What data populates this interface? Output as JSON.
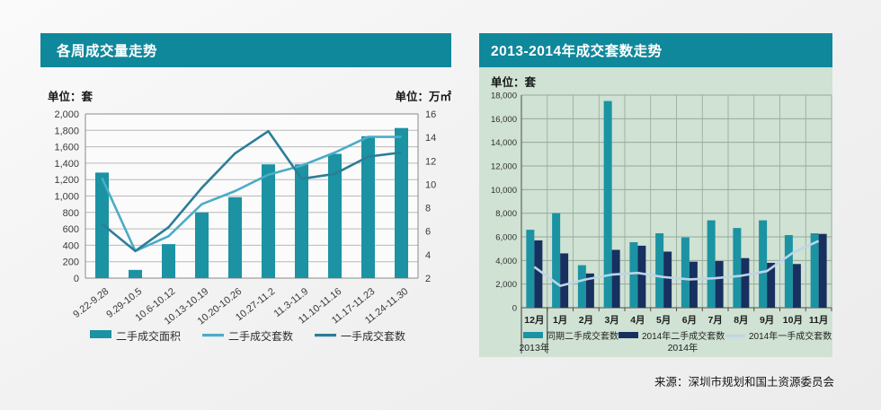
{
  "source": "来源：深圳市规划和国土资源委员会",
  "colors": {
    "header_teal": "#10889b",
    "teal_bar": "#1b93a3",
    "light_line": "#4bacc6",
    "dark_line": "#2b7e97",
    "navy_bar": "#173060",
    "pale_line": "#bcd5e8",
    "green_panel": "#cfe2d3",
    "left_plot_fill": "#fbfbfb",
    "left_grid": "#b9b9b9",
    "left_border": "#8a8a8a",
    "right_grid": "#96a89a",
    "right_axis_line": "#4c4c4c"
  },
  "chart_data": [
    {
      "type": "bar",
      "subtype": "combo-bar-line-dual-axis",
      "title": "各周成交量走势",
      "unit_left": "单位：套",
      "unit_right": "单位：万㎡",
      "categories": [
        "9.22-9.28",
        "9.29-10.5",
        "10.6-10.12",
        "10.13-10.19",
        "10.20-10.26",
        "10.27-11.2",
        "11.3-11.9",
        "11.10-11.16",
        "11.17-11.23",
        "11.24-11.30"
      ],
      "series": [
        {
          "name": "二手成交面积",
          "kind": "bar",
          "axis": "right",
          "values": [
            11.0,
            2.7,
            4.9,
            7.6,
            8.9,
            11.7,
            11.7,
            12.6,
            14.1,
            14.8
          ]
        },
        {
          "name": "二手成交套数",
          "kind": "line",
          "axis": "left",
          "values": [
            1220,
            330,
            510,
            900,
            1060,
            1260,
            1370,
            1530,
            1720,
            1720
          ]
        },
        {
          "name": "一手成交套数",
          "kind": "line",
          "axis": "left",
          "values": [
            660,
            330,
            620,
            1100,
            1520,
            1790,
            1210,
            1270,
            1480,
            1530
          ]
        }
      ],
      "left_axis": {
        "min": 0,
        "max": 2000,
        "step": 200
      },
      "right_axis": {
        "min": 2,
        "max": 16,
        "step": 2
      },
      "grid": true,
      "legend_position": "bottom"
    },
    {
      "type": "bar",
      "subtype": "grouped-bar-with-line",
      "title": "2013-2014年成交套数走势",
      "unit": "单位：套",
      "categories": [
        "12月",
        "1月",
        "2月",
        "3月",
        "4月",
        "5月",
        "6月",
        "7月",
        "8月",
        "9月",
        "10月",
        "11月"
      ],
      "series": [
        {
          "name": "同期二手成交套数",
          "kind": "bar",
          "values": [
            6600,
            8000,
            3600,
            17500,
            5550,
            6300,
            5950,
            7400,
            6750,
            7400,
            6150,
            6300
          ]
        },
        {
          "name": "2014年二手成交套数",
          "kind": "bar",
          "values": [
            5700,
            4600,
            2900,
            4900,
            5250,
            4750,
            3900,
            3950,
            4200,
            3800,
            3700,
            6250
          ]
        },
        {
          "name": "2014年一手成交套数",
          "kind": "line",
          "values": [
            3450,
            1850,
            2400,
            2800,
            2950,
            2600,
            2400,
            2500,
            2700,
            3100,
            4650,
            5650
          ]
        }
      ],
      "y_axis": {
        "min": 0,
        "max": 18000,
        "step": 2000
      },
      "year_labels": [
        "2013年",
        "2014年"
      ],
      "grid": true,
      "legend_position": "bottom"
    }
  ]
}
